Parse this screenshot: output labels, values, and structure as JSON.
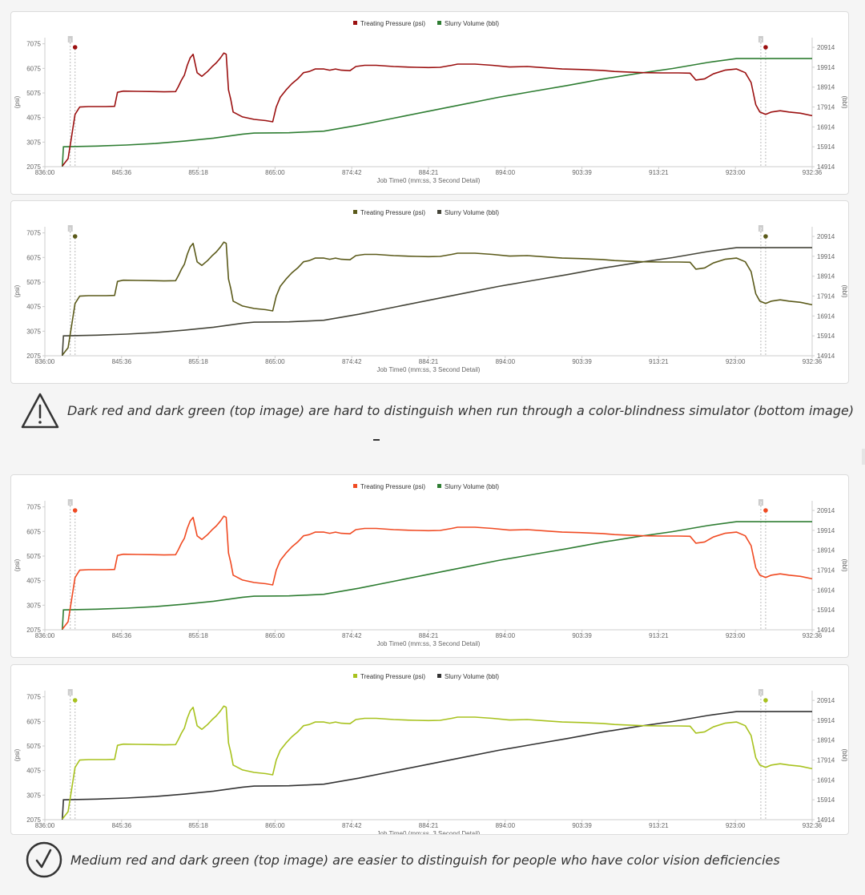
{
  "chart_data": [
    {
      "type": "line",
      "id": "chart1",
      "xlabel": "Job Time0 (mm:ss, 3 Second Detail)",
      "ylabel_left": "(psi)",
      "ylabel_right": "(bbl)",
      "x_tick_labels": [
        "836:00",
        "845:36",
        "855:18",
        "865:00",
        "874:42",
        "884:21",
        "894:00",
        "903:39",
        "913:21",
        "923:00",
        "932:36"
      ],
      "y_left_ticks": [
        2075,
        3075,
        4075,
        5075,
        6075,
        7075
      ],
      "y_right_ticks": [
        14914,
        15914,
        16914,
        17914,
        18914,
        19914,
        20914
      ],
      "ylim_left": [
        2075,
        7325
      ],
      "ylim_right": [
        14914,
        21400
      ],
      "marker_labels": [
        "1",
        "2"
      ],
      "legend_position": "top-center",
      "series": [
        {
          "name": "Treating Pressure (psi)",
          "axis": "left",
          "color": "#9b1010"
        },
        {
          "name": "Slurry Volume (bbl)",
          "axis": "right",
          "color": "#2e7d32"
        }
      ]
    },
    {
      "type": "line",
      "id": "chart2",
      "xlabel": "Job Time0 (mm:ss, 3 Second Detail)",
      "ylabel_left": "(psi)",
      "ylabel_right": "(bbl)",
      "x_tick_labels": [
        "836:00",
        "845:36",
        "855:18",
        "865:00",
        "874:42",
        "884:21",
        "894:00",
        "903:39",
        "913:21",
        "923:00",
        "932:36"
      ],
      "y_left_ticks": [
        2075,
        3075,
        4075,
        5075,
        6075,
        7075
      ],
      "y_right_ticks": [
        14914,
        15914,
        16914,
        17914,
        18914,
        19914,
        20914
      ],
      "ylim_left": [
        2075,
        7325
      ],
      "ylim_right": [
        14914,
        21400
      ],
      "marker_labels": [
        "1",
        "2"
      ],
      "legend_position": "top-center",
      "series": [
        {
          "name": "Treating Pressure (psi)",
          "axis": "left",
          "color": "#5b5a1a"
        },
        {
          "name": "Slurry Volume (bbl)",
          "axis": "right",
          "color": "#444438"
        }
      ]
    },
    {
      "type": "line",
      "id": "chart3",
      "xlabel": "Job Time0 (mm:ss, 3 Second Detail)",
      "ylabel_left": "(psi)",
      "ylabel_right": "(bbl)",
      "x_tick_labels": [
        "836:00",
        "845:36",
        "855:18",
        "865:00",
        "874:42",
        "884:21",
        "894:00",
        "903:39",
        "913:21",
        "923:00",
        "932:36"
      ],
      "y_left_ticks": [
        2075,
        3075,
        4075,
        5075,
        6075,
        7075
      ],
      "y_right_ticks": [
        14914,
        15914,
        16914,
        17914,
        18914,
        19914,
        20914
      ],
      "ylim_left": [
        2075,
        7325
      ],
      "ylim_right": [
        14914,
        21400
      ],
      "marker_labels": [
        "1",
        "2"
      ],
      "legend_position": "top-center",
      "series": [
        {
          "name": "Treating Pressure (psi)",
          "axis": "left",
          "color": "#f04a22"
        },
        {
          "name": "Slurry Volume (bbl)",
          "axis": "right",
          "color": "#2e7d32"
        }
      ]
    },
    {
      "type": "line",
      "id": "chart4",
      "xlabel": "Job Time0 (mm:ss, 3 Second Detail)",
      "ylabel_left": "(psi)",
      "ylabel_right": "(bbl)",
      "x_tick_labels": [
        "836:00",
        "845:36",
        "855:18",
        "865:00",
        "874:42",
        "884:21",
        "894:00",
        "903:39",
        "913:21",
        "923:00",
        "932:36"
      ],
      "y_left_ticks": [
        2075,
        3075,
        4075,
        5075,
        6075,
        7075
      ],
      "y_right_ticks": [
        14914,
        15914,
        16914,
        17914,
        18914,
        19914,
        20914
      ],
      "ylim_left": [
        2075,
        7325
      ],
      "ylim_right": [
        14914,
        21400
      ],
      "marker_labels": [
        "1",
        "2"
      ],
      "legend_position": "top-center",
      "series": [
        {
          "name": "Treating Pressure (psi)",
          "axis": "left",
          "color": "#a8c21e"
        },
        {
          "name": "Slurry Volume (bbl)",
          "axis": "right",
          "color": "#333333"
        }
      ]
    }
  ],
  "pressure_points": [
    [
      839.0,
      2100
    ],
    [
      840.0,
      2400
    ],
    [
      840.6,
      3300
    ],
    [
      841.2,
      4200
    ],
    [
      842.0,
      4500
    ],
    [
      843.5,
      4520
    ],
    [
      845.0,
      4520
    ],
    [
      846.5,
      4520
    ],
    [
      848.0,
      4530
    ],
    [
      848.5,
      5100
    ],
    [
      849.5,
      5150
    ],
    [
      852.0,
      5140
    ],
    [
      855.0,
      5130
    ],
    [
      856.5,
      5120
    ],
    [
      858.5,
      5130
    ],
    [
      859.0,
      5350
    ],
    [
      859.5,
      5600
    ],
    [
      860.0,
      5800
    ],
    [
      860.5,
      6200
    ],
    [
      861.0,
      6500
    ],
    [
      861.5,
      6650
    ],
    [
      862.2,
      5900
    ],
    [
      863.0,
      5750
    ],
    [
      864.0,
      5950
    ],
    [
      864.8,
      6150
    ],
    [
      865.5,
      6300
    ],
    [
      866.2,
      6500
    ],
    [
      866.8,
      6700
    ],
    [
      867.2,
      6650
    ],
    [
      867.6,
      5200
    ],
    [
      868.0,
      4800
    ],
    [
      868.4,
      4300
    ],
    [
      868.8,
      4250
    ],
    [
      870.0,
      4100
    ],
    [
      872.0,
      4000
    ],
    [
      874.0,
      3950
    ],
    [
      875.2,
      3900
    ],
    [
      875.8,
      4500
    ],
    [
      876.5,
      4900
    ],
    [
      877.5,
      5200
    ],
    [
      878.5,
      5450
    ],
    [
      879.5,
      5650
    ],
    [
      880.5,
      5900
    ],
    [
      881.5,
      5950
    ],
    [
      882.5,
      6050
    ],
    [
      884.0,
      6050
    ],
    [
      885.0,
      6000
    ],
    [
      886.0,
      6050
    ],
    [
      887.0,
      6000
    ],
    [
      888.5,
      5980
    ],
    [
      889.5,
      6150
    ],
    [
      891.0,
      6200
    ],
    [
      893.0,
      6200
    ],
    [
      896.0,
      6150
    ],
    [
      898.0,
      6130
    ],
    [
      900.0,
      6120
    ],
    [
      902.0,
      6110
    ],
    [
      904.0,
      6120
    ],
    [
      906.0,
      6200
    ],
    [
      907.0,
      6250
    ],
    [
      910.0,
      6250
    ],
    [
      913.0,
      6200
    ],
    [
      916.0,
      6130
    ],
    [
      919.0,
      6150
    ],
    [
      922.0,
      6100
    ],
    [
      925.0,
      6050
    ],
    [
      928.0,
      6030
    ],
    [
      932.0,
      5990
    ],
    [
      934.0,
      5950
    ],
    [
      936.0,
      5930
    ],
    [
      939.0,
      5900
    ],
    [
      942.0,
      5890
    ],
    [
      945.0,
      5890
    ],
    [
      947.0,
      5880
    ],
    [
      948.0,
      5600
    ],
    [
      949.5,
      5650
    ],
    [
      951.0,
      5850
    ],
    [
      953.0,
      6000
    ],
    [
      955.0,
      6050
    ],
    [
      956.5,
      5900
    ],
    [
      957.5,
      5500
    ],
    [
      958.3,
      4600
    ],
    [
      959.0,
      4300
    ],
    [
      960.0,
      4200
    ],
    [
      961.0,
      4300
    ],
    [
      962.5,
      4350
    ],
    [
      964.0,
      4300
    ],
    [
      966.0,
      4250
    ],
    [
      968.0,
      4150
    ]
  ],
  "volume_points": [
    [
      839.0,
      14914
    ],
    [
      839.2,
      15914
    ],
    [
      845.0,
      15950
    ],
    [
      850.0,
      16000
    ],
    [
      855.0,
      16080
    ],
    [
      860.0,
      16200
    ],
    [
      865.0,
      16350
    ],
    [
      870.0,
      16550
    ],
    [
      872.0,
      16600
    ],
    [
      878.0,
      16620
    ],
    [
      884.0,
      16700
    ],
    [
      890.0,
      17000
    ],
    [
      896.0,
      17350
    ],
    [
      902.0,
      17700
    ],
    [
      908.0,
      18050
    ],
    [
      914.0,
      18400
    ],
    [
      920.0,
      18700
    ],
    [
      926.0,
      19000
    ],
    [
      932.0,
      19320
    ],
    [
      938.0,
      19600
    ],
    [
      944.0,
      19850
    ],
    [
      950.0,
      20150
    ],
    [
      955.0,
      20350
    ],
    [
      959.0,
      20350
    ],
    [
      968.0,
      20350
    ]
  ],
  "notes": {
    "warning_text": "Dark red and dark green (top image) are hard to distinguish when run through a color-blindness simulator (bottom image)",
    "ok_text": "Medium red and dark green (top image) are easier to distinguish for people who have color vision deficiencies"
  }
}
